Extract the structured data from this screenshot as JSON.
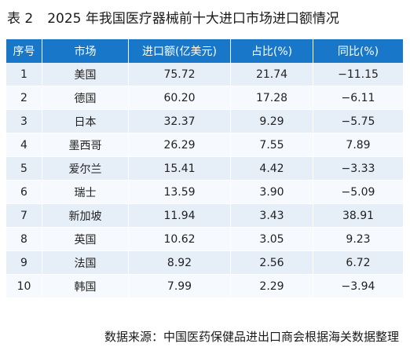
{
  "title": {
    "label": "表 2",
    "text": "2025 年我国医疗器械前十大进口市场进口额情况"
  },
  "table": {
    "headers": [
      "序号",
      "市场",
      "进口额(亿美元)",
      "占比(%)",
      "同比(%)"
    ],
    "rows": [
      [
        "1",
        "美国",
        "75.72",
        "21.74",
        "−11.15"
      ],
      [
        "2",
        "德国",
        "60.20",
        "17.28",
        "−6.11"
      ],
      [
        "3",
        "日本",
        "32.37",
        "9.29",
        "−5.75"
      ],
      [
        "4",
        "墨西哥",
        "26.29",
        "7.55",
        "7.89"
      ],
      [
        "5",
        "爱尔兰",
        "15.41",
        "4.42",
        "−3.33"
      ],
      [
        "6",
        "瑞士",
        "13.59",
        "3.90",
        "−5.09"
      ],
      [
        "7",
        "新加坡",
        "11.94",
        "3.43",
        "38.91"
      ],
      [
        "8",
        "英国",
        "10.62",
        "3.05",
        "9.23"
      ],
      [
        "9",
        "法国",
        "8.92",
        "2.56",
        "6.72"
      ],
      [
        "10",
        "韩国",
        "7.99",
        "2.29",
        "−3.94"
      ]
    ]
  },
  "source": "数据来源：中国医药保健品进出口商会根据海关数据整理",
  "colors": {
    "header_bg": "#1877c9",
    "row_odd_bg": "#e6eef8",
    "row_even_bg": "#f6f9fd"
  }
}
